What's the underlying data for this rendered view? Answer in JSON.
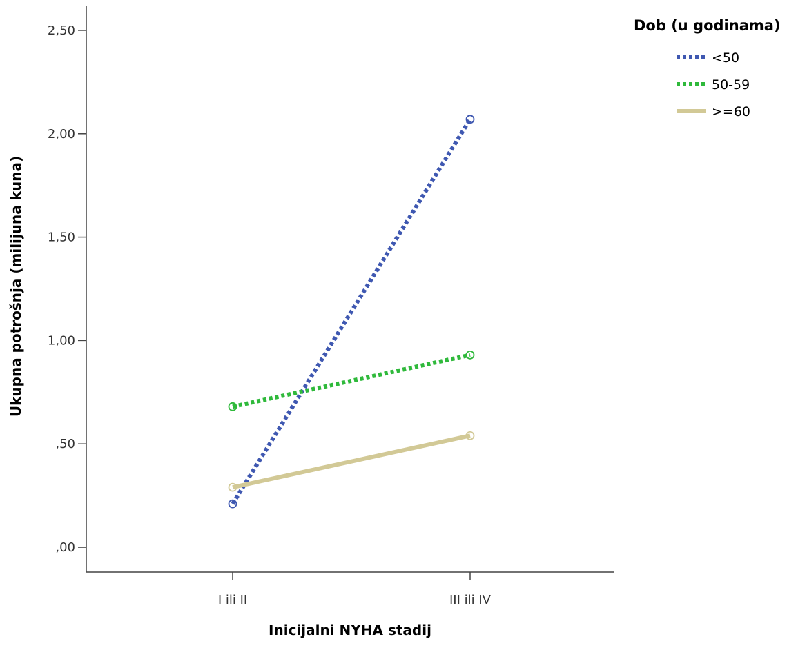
{
  "chart_data": {
    "type": "line",
    "title": "",
    "xlabel": "Inicijalni NYHA stadij",
    "ylabel": "Ukupna potrošnja (milijuna kuna)",
    "categories": [
      "I ili II",
      "III ili IV"
    ],
    "ylim": [
      -0.12,
      2.62
    ],
    "yticks": [
      0.0,
      0.5,
      1.0,
      1.5,
      2.0,
      2.5
    ],
    "ytick_labels": [
      ",00",
      ",50",
      "1,00",
      "1,50",
      "2,00",
      "2,50"
    ],
    "grid": false,
    "legend": {
      "title": "Dob (u godinama)",
      "position": "top-right"
    },
    "series": [
      {
        "name": "<50",
        "values": [
          0.21,
          2.07
        ],
        "color": "#3f58b1",
        "line_style": "dotted"
      },
      {
        "name": "50-59",
        "values": [
          0.68,
          0.93
        ],
        "color": "#2fb93b",
        "line_style": "dotted"
      },
      {
        "name": ">=60",
        "values": [
          0.29,
          0.54
        ],
        "color": "#d2c996",
        "line_style": "solid"
      }
    ]
  }
}
